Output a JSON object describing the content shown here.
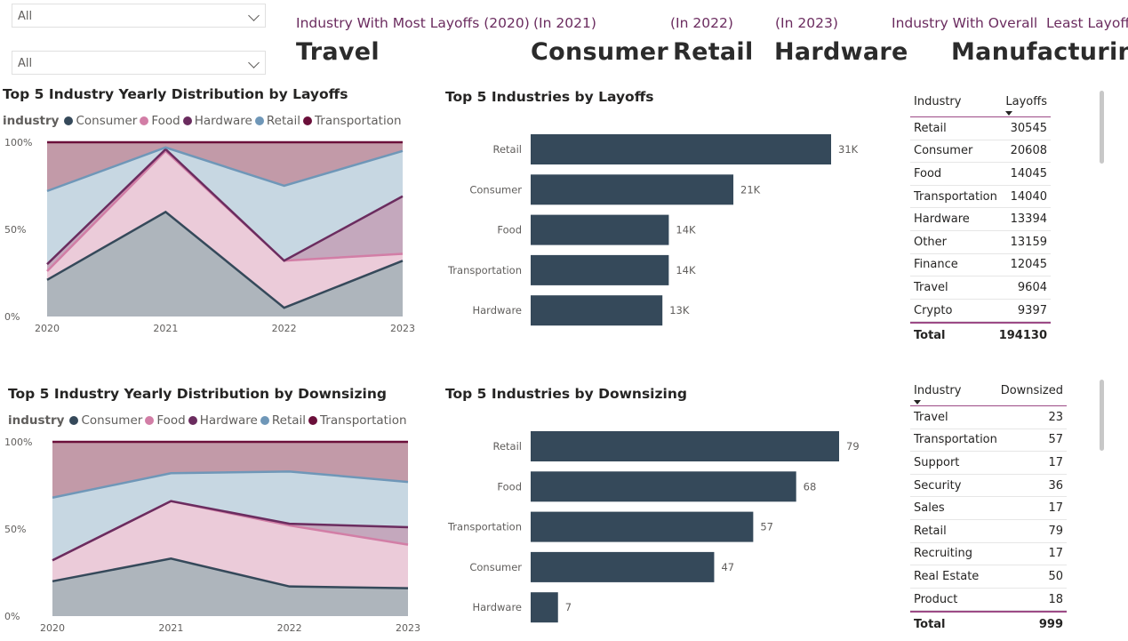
{
  "slicers": [
    {
      "value": "All"
    },
    {
      "value": "All"
    }
  ],
  "kpis": [
    {
      "label": "Industry With Most Layoffs (2020)",
      "value": "Travel"
    },
    {
      "label": "(In 2021)",
      "value": "Consumer"
    },
    {
      "label": "(In 2022)",
      "value": "Retail"
    },
    {
      "label": "(In 2023)",
      "value": "Hardware"
    },
    {
      "label": "Industry With Overall  Least Layoffs",
      "value": "Manufacturing"
    }
  ],
  "colors": {
    "Consumer": "#35495a",
    "Food": "#d27ea6",
    "Hardware": "#6b2c5f",
    "Retail": "#6f97b8",
    "Transportation": "#6b0f3a",
    "bar": "#35495a",
    "accent": "#9c4a86"
  },
  "chart_data": [
    {
      "type": "area",
      "stacked_percent": true,
      "title": "Top 5 Industry Yearly Distribution by Layoffs",
      "legend_title": "industry",
      "legend_position": "top-left",
      "x": [
        "2020",
        "2021",
        "2022",
        "2023"
      ],
      "yticks": [
        "0%",
        "50%",
        "100%"
      ],
      "ylim": [
        0,
        100
      ],
      "series": [
        {
          "name": "Consumer",
          "values": [
            21,
            60,
            5,
            32
          ]
        },
        {
          "name": "Food",
          "values": [
            5,
            35,
            27,
            4
          ]
        },
        {
          "name": "Hardware",
          "values": [
            4,
            1,
            0,
            33
          ]
        },
        {
          "name": "Retail",
          "values": [
            42,
            1,
            43,
            26
          ]
        },
        {
          "name": "Transportation",
          "values": [
            28,
            3,
            25,
            5
          ]
        }
      ]
    },
    {
      "type": "bar",
      "orientation": "horizontal",
      "title": "Top 5 Industries by Layoffs",
      "categories": [
        "Retail",
        "Consumer",
        "Food",
        "Transportation",
        "Hardware"
      ],
      "values": [
        30545,
        20608,
        14045,
        14040,
        13394
      ],
      "labels": [
        "31K",
        "21K",
        "14K",
        "14K",
        "13K"
      ]
    },
    {
      "type": "table",
      "columns": [
        "Industry",
        "Layoffs"
      ],
      "rows": [
        [
          "Retail",
          "30545"
        ],
        [
          "Consumer",
          "20608"
        ],
        [
          "Food",
          "14045"
        ],
        [
          "Transportation",
          "14040"
        ],
        [
          "Hardware",
          "13394"
        ],
        [
          "Other",
          "13159"
        ],
        [
          "Finance",
          "12045"
        ],
        [
          "Travel",
          "9604"
        ],
        [
          "Crypto",
          "9397"
        ]
      ],
      "total": [
        "Total",
        "194130"
      ]
    },
    {
      "type": "area",
      "stacked_percent": true,
      "title": "Top 5 Industry Yearly Distribution by Downsizing",
      "legend_title": "industry",
      "legend_position": "top-left",
      "x": [
        "2020",
        "2021",
        "2022",
        "2023"
      ],
      "yticks": [
        "0%",
        "50%",
        "100%"
      ],
      "ylim": [
        0,
        100
      ],
      "series": [
        {
          "name": "Consumer",
          "values": [
            20,
            33,
            17,
            16
          ]
        },
        {
          "name": "Food",
          "values": [
            12,
            33,
            35,
            25
          ]
        },
        {
          "name": "Hardware",
          "values": [
            0,
            0,
            1,
            10
          ]
        },
        {
          "name": "Retail",
          "values": [
            36,
            16,
            30,
            26
          ]
        },
        {
          "name": "Transportation",
          "values": [
            32,
            18,
            17,
            23
          ]
        }
      ]
    },
    {
      "type": "bar",
      "orientation": "horizontal",
      "title": "Top 5 Industries by Downsizing",
      "categories": [
        "Retail",
        "Food",
        "Transportation",
        "Consumer",
        "Hardware"
      ],
      "values": [
        79,
        68,
        57,
        47,
        7
      ],
      "labels": [
        "79",
        "68",
        "57",
        "47",
        "7"
      ]
    },
    {
      "type": "table",
      "columns": [
        "Industry",
        "Downsized"
      ],
      "rows": [
        [
          "Travel",
          "23"
        ],
        [
          "Transportation",
          "57"
        ],
        [
          "Support",
          "17"
        ],
        [
          "Security",
          "36"
        ],
        [
          "Sales",
          "17"
        ],
        [
          "Retail",
          "79"
        ],
        [
          "Recruiting",
          "17"
        ],
        [
          "Real Estate",
          "50"
        ],
        [
          "Product",
          "18"
        ]
      ],
      "total": [
        "Total",
        "999"
      ]
    }
  ]
}
